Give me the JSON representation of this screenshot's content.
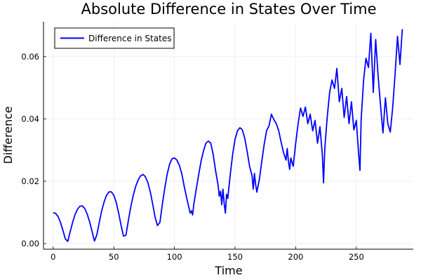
{
  "chart_data": {
    "type": "line",
    "title": "Absolute Difference in States Over Time",
    "xlabel": "Time",
    "ylabel": "Difference",
    "xlim": [
      -8,
      297
    ],
    "ylim": [
      -0.0018,
      0.0712
    ],
    "x_ticks": [
      0,
      50,
      100,
      150,
      200,
      250
    ],
    "x_tick_labels": [
      "0",
      "50",
      "100",
      "150",
      "200",
      "250"
    ],
    "y_ticks": [
      0.0,
      0.02,
      0.04,
      0.06
    ],
    "y_tick_labels": [
      "0.00",
      "0.02",
      "0.04",
      "0.06"
    ],
    "grid": true,
    "legend_position": "top-left",
    "series": [
      {
        "name": "Difference in States",
        "color": "#0000ff",
        "x": [
          0,
          2,
          4,
          6,
          8,
          10,
          12,
          14,
          16,
          18,
          20,
          22,
          24,
          26,
          28,
          30,
          32,
          34,
          36,
          38,
          40,
          42,
          44,
          46,
          48,
          50,
          52,
          54,
          56,
          58,
          60,
          62,
          64,
          66,
          68,
          70,
          72,
          74,
          76,
          78,
          80,
          82,
          84,
          86,
          88,
          90,
          92,
          94,
          96,
          98,
          100,
          102,
          104,
          106,
          108,
          110,
          112,
          113,
          114,
          115,
          116,
          118,
          120,
          122,
          124,
          126,
          128,
          130,
          132,
          134,
          136,
          137,
          138,
          139,
          140,
          141,
          142,
          143,
          144,
          146,
          148,
          150,
          152,
          154,
          156,
          158,
          160,
          162,
          164,
          165,
          166,
          167,
          168,
          169,
          170,
          172,
          174,
          176,
          178,
          180,
          182,
          184,
          186,
          188,
          190,
          192,
          193,
          194,
          195,
          196,
          198,
          200,
          202,
          204,
          206,
          208,
          210,
          212,
          214,
          216,
          218,
          220,
          222,
          223,
          224,
          226,
          228,
          230,
          232,
          234,
          236,
          238,
          240,
          242,
          244,
          246,
          248,
          250,
          252,
          253,
          254,
          256,
          258,
          260,
          262,
          264,
          266,
          268,
          270,
          272,
          274,
          276,
          278,
          280,
          282,
          284,
          286,
          288
        ],
        "values": [
          0.0099,
          0.0097,
          0.0087,
          0.0068,
          0.0043,
          0.0015,
          0.0007,
          0.0038,
          0.0068,
          0.0093,
          0.011,
          0.012,
          0.0121,
          0.0113,
          0.0095,
          0.007,
          0.004,
          0.0008,
          0.0028,
          0.0068,
          0.0105,
          0.0134,
          0.0155,
          0.0166,
          0.0166,
          0.0155,
          0.0132,
          0.0098,
          0.0058,
          0.0024,
          0.0027,
          0.0075,
          0.0118,
          0.0155,
          0.0183,
          0.0204,
          0.0217,
          0.0222,
          0.0215,
          0.0197,
          0.0167,
          0.0128,
          0.0085,
          0.0058,
          0.0068,
          0.0125,
          0.0178,
          0.0222,
          0.0255,
          0.0272,
          0.0275,
          0.0268,
          0.0252,
          0.0225,
          0.0185,
          0.0148,
          0.0115,
          0.0098,
          0.0105,
          0.0092,
          0.0128,
          0.0175,
          0.0222,
          0.0265,
          0.0298,
          0.0322,
          0.0329,
          0.0322,
          0.0285,
          0.0232,
          0.0188,
          0.0152,
          0.0168,
          0.0125,
          0.0175,
          0.0128,
          0.0098,
          0.0158,
          0.0145,
          0.022,
          0.0285,
          0.0335,
          0.0362,
          0.0372,
          0.0365,
          0.0338,
          0.0295,
          0.0248,
          0.0218,
          0.0175,
          0.0225,
          0.0188,
          0.0165,
          0.0185,
          0.0205,
          0.0262,
          0.0318,
          0.0362,
          0.0378,
          0.0415,
          0.0398,
          0.0385,
          0.0362,
          0.0325,
          0.0292,
          0.0268,
          0.0305,
          0.0265,
          0.0238,
          0.0275,
          0.0248,
          0.0322,
          0.0385,
          0.0435,
          0.0408,
          0.0438,
          0.0385,
          0.0415,
          0.0362,
          0.0395,
          0.0322,
          0.0375,
          0.0285,
          0.0195,
          0.0305,
          0.0405,
          0.0485,
          0.0525,
          0.0498,
          0.0562,
          0.0455,
          0.0498,
          0.0405,
          0.0472,
          0.0385,
          0.0455,
          0.0365,
          0.0395,
          0.0285,
          0.0235,
          0.0398,
          0.0525,
          0.0595,
          0.0565,
          0.0675,
          0.0485,
          0.0655,
          0.0538,
          0.0445,
          0.0355,
          0.0468,
          0.0385,
          0.0358,
          0.0435,
          0.0545,
          0.0665,
          0.0575,
          0.0688
        ]
      }
    ]
  }
}
